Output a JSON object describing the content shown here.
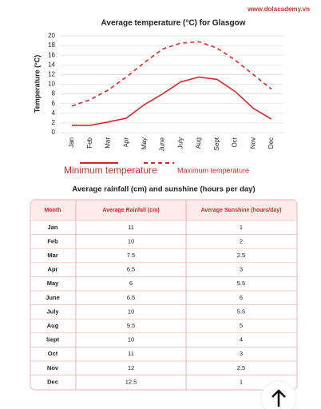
{
  "watermark": "www.dolacademy.vn",
  "chart_data": {
    "type": "line",
    "title": "Average temperature (°C) for Glasgow",
    "y_label": "Temperature   (°C)",
    "categories": [
      "Jan",
      "Feb",
      "Mar",
      "Apr",
      "May",
      "June",
      "July",
      "Aug",
      "Sept",
      "Oct",
      "Nov",
      "Dec"
    ],
    "series": [
      {
        "name": "Minimum temperature",
        "color": "#d62828",
        "dashed": false,
        "values": [
          1.5,
          1.5,
          2.2,
          3,
          5.8,
          8,
          10.5,
          11.5,
          11,
          8.5,
          5,
          2.8
        ]
      },
      {
        "name": "Maximum temperature",
        "color": "#d62828",
        "dashed": true,
        "values": [
          5.5,
          6.8,
          8.8,
          11.5,
          14.5,
          17.3,
          18.5,
          18.8,
          17.5,
          15,
          12,
          9
        ]
      }
    ],
    "ylim": [
      0,
      20
    ],
    "yticks": [
      0,
      2,
      4,
      6,
      8,
      10,
      12,
      14,
      16,
      18,
      20
    ],
    "grid": true
  },
  "table": {
    "title": "Average rainfall (cm) and sunshine (hours per day)",
    "header": [
      "Month",
      "Average Rainfall (cm)",
      "Average Sunshine (hours/day)"
    ],
    "rows": [
      [
        "Jan",
        11,
        1
      ],
      [
        "Feb",
        10,
        2
      ],
      [
        "Mar",
        7.5,
        2.5
      ],
      [
        "Apr",
        6.5,
        3
      ],
      [
        "May",
        6,
        5.5
      ],
      [
        "June",
        6.5,
        6
      ],
      [
        "July",
        10,
        5.5
      ],
      [
        "Aug",
        9.5,
        5
      ],
      [
        "Sept",
        10,
        4
      ],
      [
        "Oct",
        11,
        3
      ],
      [
        "Nov",
        12,
        2.5
      ],
      [
        "Dec",
        12.5,
        1
      ]
    ]
  }
}
